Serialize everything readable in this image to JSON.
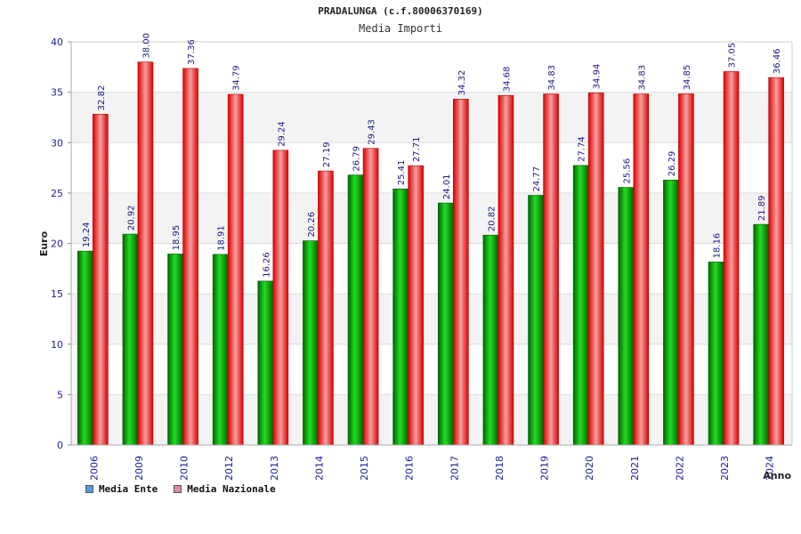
{
  "chart_data": {
    "type": "bar",
    "title": "PRADALUNGA (c.f.80006370169)",
    "subtitle": "Media Importi",
    "xlabel": "Anno",
    "ylabel": "Euro",
    "ylim": [
      0,
      40
    ],
    "yticks": [
      0,
      5,
      10,
      15,
      20,
      25,
      30,
      35,
      40
    ],
    "grid": true,
    "legend_position": "bottom-left",
    "categories": [
      "2006",
      "2009",
      "2010",
      "2012",
      "2013",
      "2014",
      "2015",
      "2016",
      "2017",
      "2018",
      "2019",
      "2020",
      "2021",
      "2022",
      "2023",
      "2024"
    ],
    "series": [
      {
        "name": "Media Ente",
        "color": "#00aa00",
        "legend_color": "#5599dd",
        "values": [
          19.24,
          20.92,
          18.95,
          18.91,
          16.26,
          20.26,
          26.79,
          25.41,
          24.01,
          20.82,
          24.77,
          27.74,
          25.56,
          26.29,
          18.16,
          21.89
        ],
        "labels": [
          "19.24",
          "20.92",
          "18.95",
          "18.91",
          "16.26",
          "20.26",
          "26.79",
          "25.41",
          "24.01",
          "20.82",
          "24.77",
          "27.74",
          "25.56",
          "26.29",
          "18.16",
          "21.89"
        ]
      },
      {
        "name": "Media Nazionale",
        "color": "#ee1111",
        "legend_color": "#dd88aa",
        "values": [
          32.82,
          38.0,
          37.36,
          34.79,
          29.24,
          27.19,
          29.43,
          27.71,
          34.32,
          34.68,
          34.83,
          34.94,
          34.83,
          34.85,
          37.05,
          36.46
        ],
        "labels": [
          "32.82",
          "38.00",
          "37.36",
          "34.79",
          "29.24",
          "27.19",
          "29.43",
          "27.71",
          "34.32",
          "34.68",
          "34.83",
          "34.94",
          "34.83",
          "34.85",
          "37.05",
          "36.46"
        ]
      }
    ]
  }
}
